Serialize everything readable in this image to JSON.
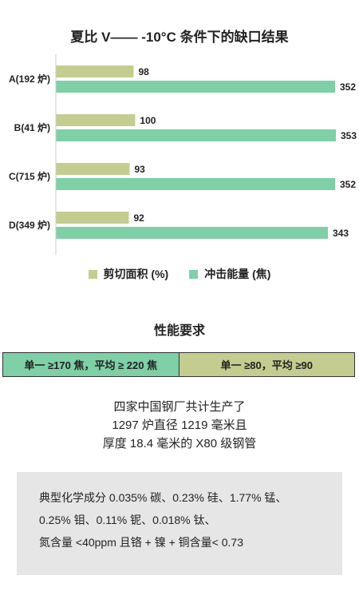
{
  "chart_data": {
    "type": "bar",
    "orientation": "horizontal",
    "title": "夏比 V—— -10°C 条件下的缺口结果",
    "categories": [
      "A(192 炉)",
      "B(41 炉)",
      "C(715 炉)",
      "D(349 炉)"
    ],
    "series": [
      {
        "name": "剪切面积 (%)",
        "values": [
          98,
          100,
          93,
          92
        ],
        "color": "#c4cc90"
      },
      {
        "name": "冲击能量 (焦)",
        "values": [
          352,
          353,
          352,
          343
        ],
        "color": "#7fcfa7"
      }
    ],
    "xlim": [
      0,
      353
    ],
    "grid": false,
    "legend_position": "bottom"
  },
  "requirements": {
    "title": "性能要求",
    "left": "单一 ≥170 焦，平均 ≥ 220 焦",
    "right": "单一 ≥80，平均 ≥90",
    "left_color": "#7fcfa7",
    "right_color": "#c4cc90"
  },
  "production": {
    "line1": "四家中国钢厂共计生产了",
    "line2": "1297 炉直径 1219 毫米且",
    "line3": "厚度 18.4 毫米的 X80 级钢管"
  },
  "composition": {
    "line1": "典型化学成分 0.035% 碳、0.23% 硅、1.77% 锰、",
    "line2": "0.25% 钼、0.11% 铌、0.018% 钛、",
    "line3": "氮含量 <40ppm 且铬 + 镍 + 铜含量< 0.73"
  }
}
